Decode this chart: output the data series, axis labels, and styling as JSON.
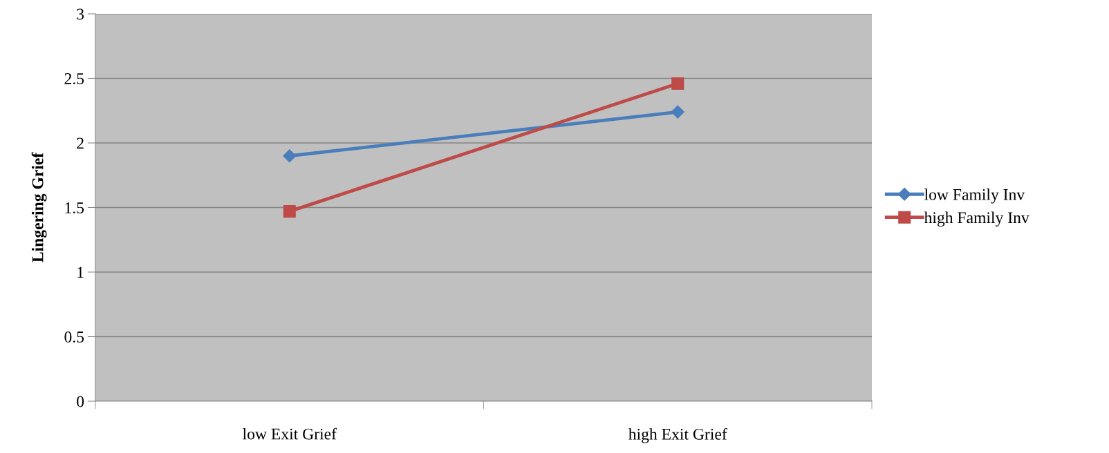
{
  "chart_data": {
    "type": "line",
    "ylabel": "Lingering Grief",
    "categories": [
      "low Exit Grief",
      "high Exit Grief"
    ],
    "series": [
      {
        "name": "low Family Inv",
        "color": "#4a7ebb",
        "marker": "diamond",
        "values": [
          1.9,
          2.24
        ]
      },
      {
        "name": "high Family Inv",
        "color": "#be4b48",
        "marker": "square",
        "values": [
          1.47,
          2.46
        ]
      }
    ],
    "ylim": [
      0,
      3
    ],
    "yticks": [
      0,
      0.5,
      1,
      1.5,
      2,
      2.5,
      3
    ],
    "grid": "y",
    "legend": "right",
    "line_style": "solid"
  }
}
